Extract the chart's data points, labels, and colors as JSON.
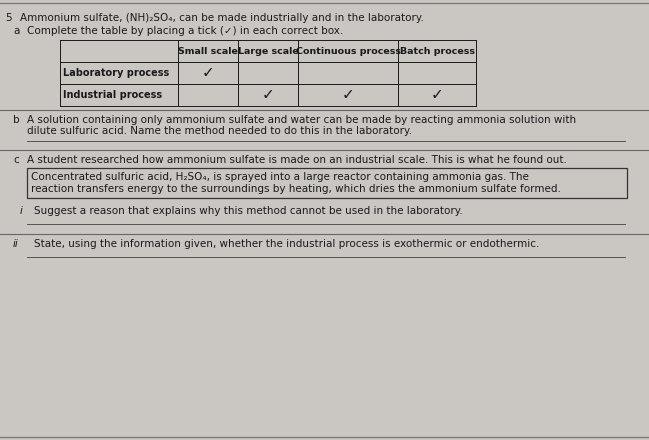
{
  "bg_color": "#cac6c2",
  "text_color": "#1a1a1a",
  "title_line": "Ammonium sulfate, (NH)₂SO₄, can be made industrially and in the laboratory.",
  "question_number": "5",
  "part_a_label": "a",
  "part_a_text": "Complete the table by placing a tick (✓) in each correct box.",
  "table_headers": [
    "",
    "Small scale",
    "Large scale",
    "Continuous process",
    "Batch process"
  ],
  "table_rows": [
    [
      "Laboratory process",
      "✓",
      "",
      "",
      ""
    ],
    [
      "Industrial process",
      "",
      "✓",
      "✓",
      "✓"
    ]
  ],
  "part_b_label": "b",
  "part_b_text_line1": "A solution containing only ammonium sulfate and water can be made by reacting ammonia solution with",
  "part_b_text_line2": "dilute sulfuric acid. Name the method needed to do this in the laboratory.",
  "part_c_label": "c",
  "part_c_text": "A student researched how ammonium sulfate is made on an industrial scale. This is what he found out.",
  "box_text_line1": "Concentrated sulfuric acid, H₂SO₄, is sprayed into a large reactor containing ammonia gas. The",
  "box_text_line2": "reaction transfers energy to the surroundings by heating, which dries the ammonium sulfate formed.",
  "part_i_label": "i",
  "part_i_text": "Suggest a reason that explains why this method cannot be used in the laboratory.",
  "part_ii_label": "ii",
  "part_ii_text": "State, using the information given, whether the industrial process is exothermic or endothermic."
}
